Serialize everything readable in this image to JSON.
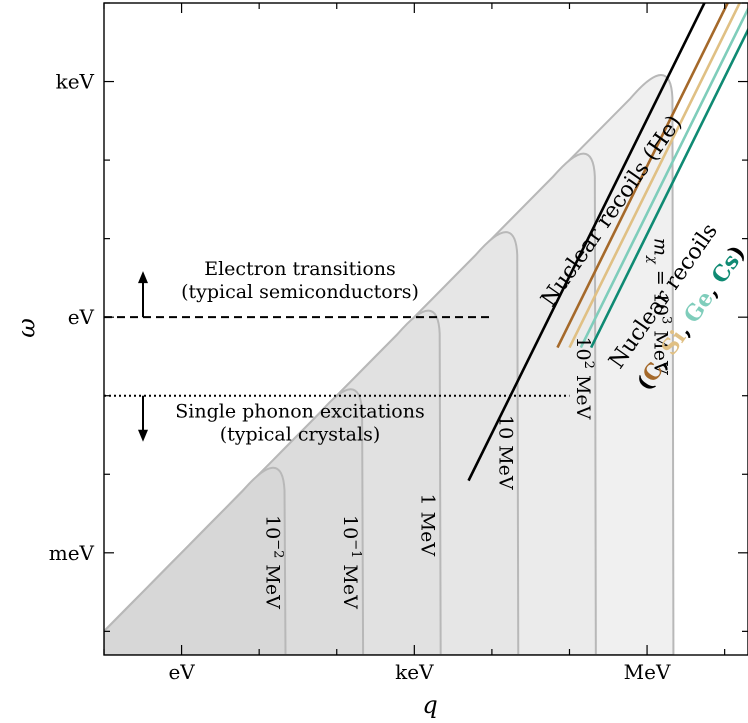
{
  "chart_data": {
    "type": "line",
    "title": "",
    "xlabel": "q",
    "ylabel": "ω",
    "x_scale": "log",
    "y_scale": "log",
    "xlim_eV": [
      0.1,
      20000000
    ],
    "ylim_eV": [
      5e-05,
      10000
    ],
    "x_ticks": [
      {
        "label": "eV",
        "value_eV": 1
      },
      {
        "label": "keV",
        "value_eV": 1000
      },
      {
        "label": "MeV",
        "value_eV": 1000000
      }
    ],
    "y_ticks": [
      {
        "label": "meV",
        "value_eV": 0.001
      },
      {
        "label": "eV",
        "value_eV": 1
      },
      {
        "label": "keV",
        "value_eV": 1000
      }
    ],
    "mass_regions": [
      {
        "mass_MeV": 0.01,
        "label_lines": [
          "10",
          "−2",
          " MeV"
        ],
        "peak_q_eV": 20,
        "peak_omega_eV": 0.02,
        "fill": "#d7d7d7"
      },
      {
        "mass_MeV": 0.1,
        "label_lines": [
          "10",
          "−1",
          " MeV"
        ],
        "peak_q_eV": 200,
        "peak_omega_eV": 0.2,
        "fill": "#dcdcdc"
      },
      {
        "mass_MeV": 1,
        "label_lines": [
          "1 MeV"
        ],
        "peak_q_eV": 2000,
        "peak_omega_eV": 2,
        "fill": "#e1e1e1"
      },
      {
        "mass_MeV": 10,
        "label_lines": [
          "10 MeV"
        ],
        "peak_q_eV": 20000,
        "peak_omega_eV": 20,
        "fill": "#e6e6e6"
      },
      {
        "mass_MeV": 100,
        "label_lines": [
          "10",
          "2",
          " MeV"
        ],
        "peak_q_eV": 200000,
        "peak_omega_eV": 200,
        "fill": "#ebebeb"
      },
      {
        "mass_MeV": 1000,
        "label_lines": [
          "m",
          "χ",
          " = 10",
          "3",
          " MeV"
        ],
        "peak_q_eV": 2000000,
        "peak_omega_eV": 2000,
        "fill": "#f0f0f0"
      }
    ],
    "horizontal_lines": [
      {
        "name": "electron-transitions",
        "omega_eV": 1,
        "style": "dashed",
        "q_range_eV": [
          0.1,
          10000
        ],
        "label_lines": [
          "Electron transitions",
          "(typical semiconductors)"
        ],
        "arrow": "up"
      },
      {
        "name": "single-phonon",
        "omega_eV": 0.1,
        "style": "dotted",
        "q_range_eV": [
          0.1,
          100000
        ],
        "label_lines": [
          "Single phonon excitations",
          "(typical crystals)"
        ],
        "arrow": "down"
      }
    ],
    "nuclear_recoil_lines": [
      {
        "name": "He",
        "color": "#000000",
        "q_start_eV": 5000,
        "omega_start_eV": 0.0083,
        "slope_loglog": 2
      },
      {
        "name": "C",
        "color": "#a5692a",
        "q_start_eV": 70000,
        "omega_start_eV": 0.41,
        "slope_loglog": 2
      },
      {
        "name": "Si",
        "color": "#e0c084",
        "q_start_eV": 100000,
        "omega_start_eV": 0.41,
        "slope_loglog": 2
      },
      {
        "name": "Ge",
        "color": "#7fcdbb",
        "q_start_eV": 140000,
        "omega_start_eV": 0.41,
        "slope_loglog": 2
      },
      {
        "name": "Cs",
        "color": "#0f8a73",
        "q_start_eV": 190000,
        "omega_start_eV": 0.41,
        "slope_loglog": 2
      }
    ],
    "nuclear_labels": {
      "he_label": "Nuclear recoils (He)",
      "multi_label_prefix": "Nuclear recoils",
      "multi_label_parts": [
        {
          "text": "(",
          "color": "#000000"
        },
        {
          "text": "C",
          "color": "#a5692a"
        },
        {
          "text": ", ",
          "color": "#000000"
        },
        {
          "text": "Si",
          "color": "#e0c084"
        },
        {
          "text": ", ",
          "color": "#000000"
        },
        {
          "text": "Ge",
          "color": "#7fcdbb"
        },
        {
          "text": ", ",
          "color": "#000000"
        },
        {
          "text": "Cs",
          "color": "#0f8a73"
        },
        {
          "text": ")",
          "color": "#000000"
        }
      ]
    }
  }
}
